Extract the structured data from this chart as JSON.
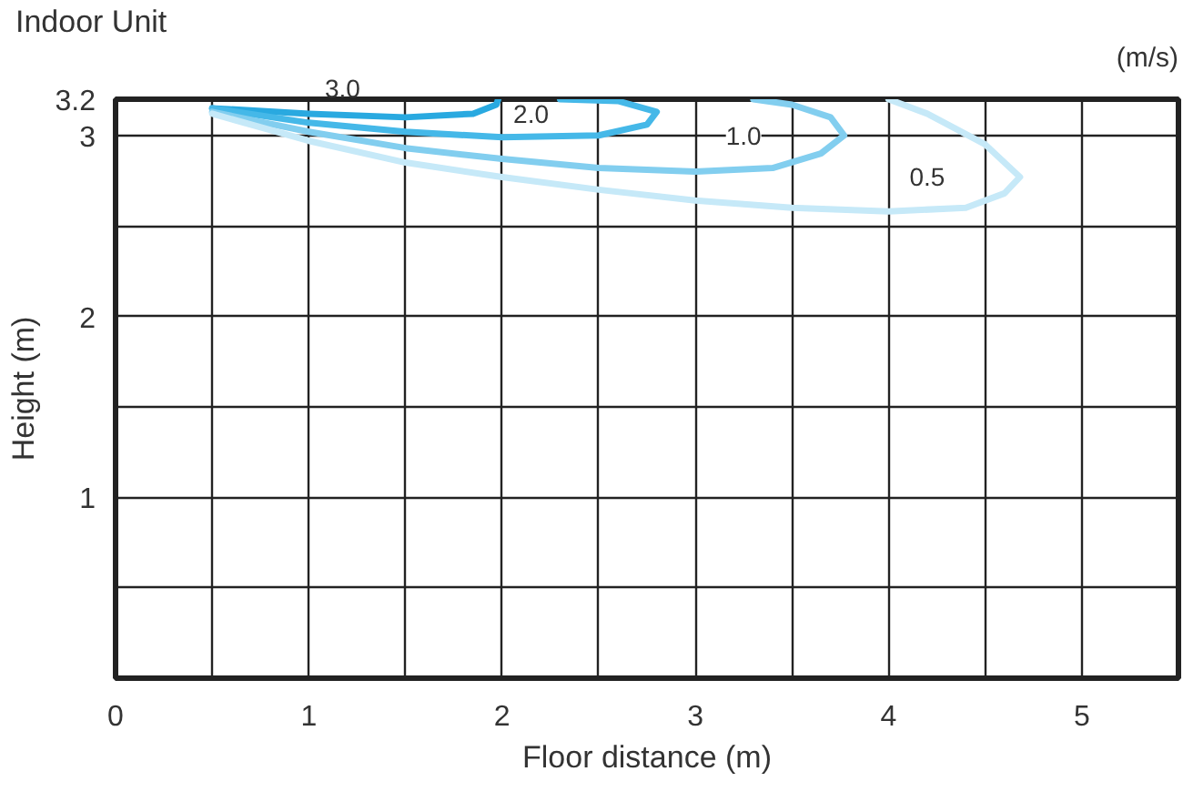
{
  "chart_data": {
    "type": "line",
    "xlabel": "Floor distance (m)",
    "ylabel": "Height (m)",
    "xlim": [
      0,
      5.5
    ],
    "ylim": [
      0,
      3.2
    ],
    "xticks": [
      0,
      {
        "value": 0.5,
        "label": null
      },
      1,
      {
        "value": 1.5,
        "label": null
      },
      2,
      {
        "value": 2.5,
        "label": null
      },
      3,
      {
        "value": 3.5,
        "label": null
      },
      4,
      {
        "value": 4.5,
        "label": null
      },
      5
    ],
    "yticks": [
      {
        "value": 0,
        "label": null
      },
      {
        "value": 0.5,
        "label": null
      },
      1,
      {
        "value": 1.5,
        "label": null
      },
      2,
      {
        "value": 2.5,
        "label": null
      },
      3,
      3.2
    ],
    "grid": true,
    "marker": "none",
    "line_style": "solid",
    "series": [
      {
        "color": "#29a9e0",
        "x": [
          0.5,
          1.0,
          1.5,
          1.85,
          1.97,
          1.98
        ],
        "values": [
          3.15,
          3.12,
          3.1,
          3.12,
          3.17,
          3.2
        ]
      },
      {
        "color": "#45b8e8",
        "x": [
          0.5,
          1.0,
          1.5,
          2.0,
          2.5,
          2.75,
          2.8,
          2.6,
          2.3
        ],
        "values": [
          3.15,
          3.07,
          3.02,
          2.99,
          3.0,
          3.06,
          3.13,
          3.19,
          3.2
        ]
      },
      {
        "color": "#82ceef",
        "x": [
          0.5,
          1.0,
          1.5,
          2.0,
          2.5,
          3.0,
          3.4,
          3.65,
          3.77,
          3.7,
          3.5,
          3.3
        ],
        "values": [
          3.13,
          3.02,
          2.93,
          2.87,
          2.82,
          2.8,
          2.82,
          2.9,
          3.0,
          3.1,
          3.17,
          3.2
        ]
      },
      {
        "color": "#c6e9f8",
        "x": [
          0.5,
          1.0,
          1.5,
          2.0,
          2.5,
          3.0,
          3.5,
          4.0,
          4.4,
          4.6,
          4.68,
          4.5,
          4.2,
          4.0
        ],
        "values": [
          3.12,
          2.97,
          2.85,
          2.77,
          2.7,
          2.64,
          2.6,
          2.58,
          2.6,
          2.68,
          2.77,
          2.95,
          3.12,
          3.2
        ]
      }
    ],
    "annotations": [
      {
        "text": "2.0",
        "x": 2.15,
        "y": 3.12
      },
      {
        "text": "1.0",
        "x": 3.25,
        "y": 3.0
      },
      {
        "text": "0.5",
        "x": 4.2,
        "y": 2.77
      },
      "Indoor Unit",
      "(m/s)",
      "3.0"
    ]
  }
}
